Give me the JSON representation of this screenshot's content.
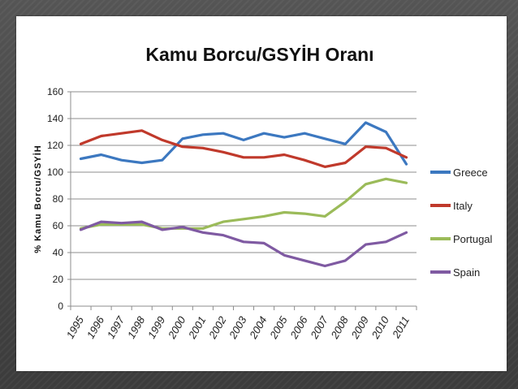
{
  "chart_data": {
    "type": "line",
    "title": "Kamu Borcu/GSYİH Oranı",
    "ylabel": "% Kamu Borcu/GSYİH",
    "xlabel": "",
    "ylim": [
      0,
      160
    ],
    "yticks": [
      0,
      20,
      40,
      60,
      80,
      100,
      120,
      140,
      160
    ],
    "grid": true,
    "legend_position": "right",
    "categories": [
      "1995",
      "1996",
      "1997",
      "1998",
      "1999",
      "2000",
      "2001",
      "2002",
      "2003",
      "2004",
      "2005",
      "2006",
      "2007",
      "2008",
      "2009",
      "2010",
      "2011"
    ],
    "series": [
      {
        "name": "Greece",
        "color": "#3c78c0",
        "values": [
          110,
          113,
          109,
          107,
          109,
          125,
          128,
          129,
          124,
          129,
          126,
          129,
          125,
          121,
          137,
          130,
          106
        ]
      },
      {
        "name": "Italy",
        "color": "#c0392b",
        "values": [
          121,
          127,
          129,
          131,
          124,
          119,
          118,
          115,
          111,
          111,
          113,
          109,
          104,
          107,
          119,
          118,
          111
        ]
      },
      {
        "name": "Portugal",
        "color": "#9bbb59",
        "values": [
          58,
          61,
          61,
          61,
          58,
          58,
          58,
          63,
          65,
          67,
          70,
          69,
          67,
          78,
          91,
          95,
          92
        ]
      },
      {
        "name": "Spain",
        "color": "#7f5aa2",
        "values": [
          57,
          63,
          62,
          63,
          57,
          59,
          55,
          53,
          48,
          47,
          38,
          34,
          30,
          34,
          46,
          48,
          55
        ]
      }
    ]
  }
}
